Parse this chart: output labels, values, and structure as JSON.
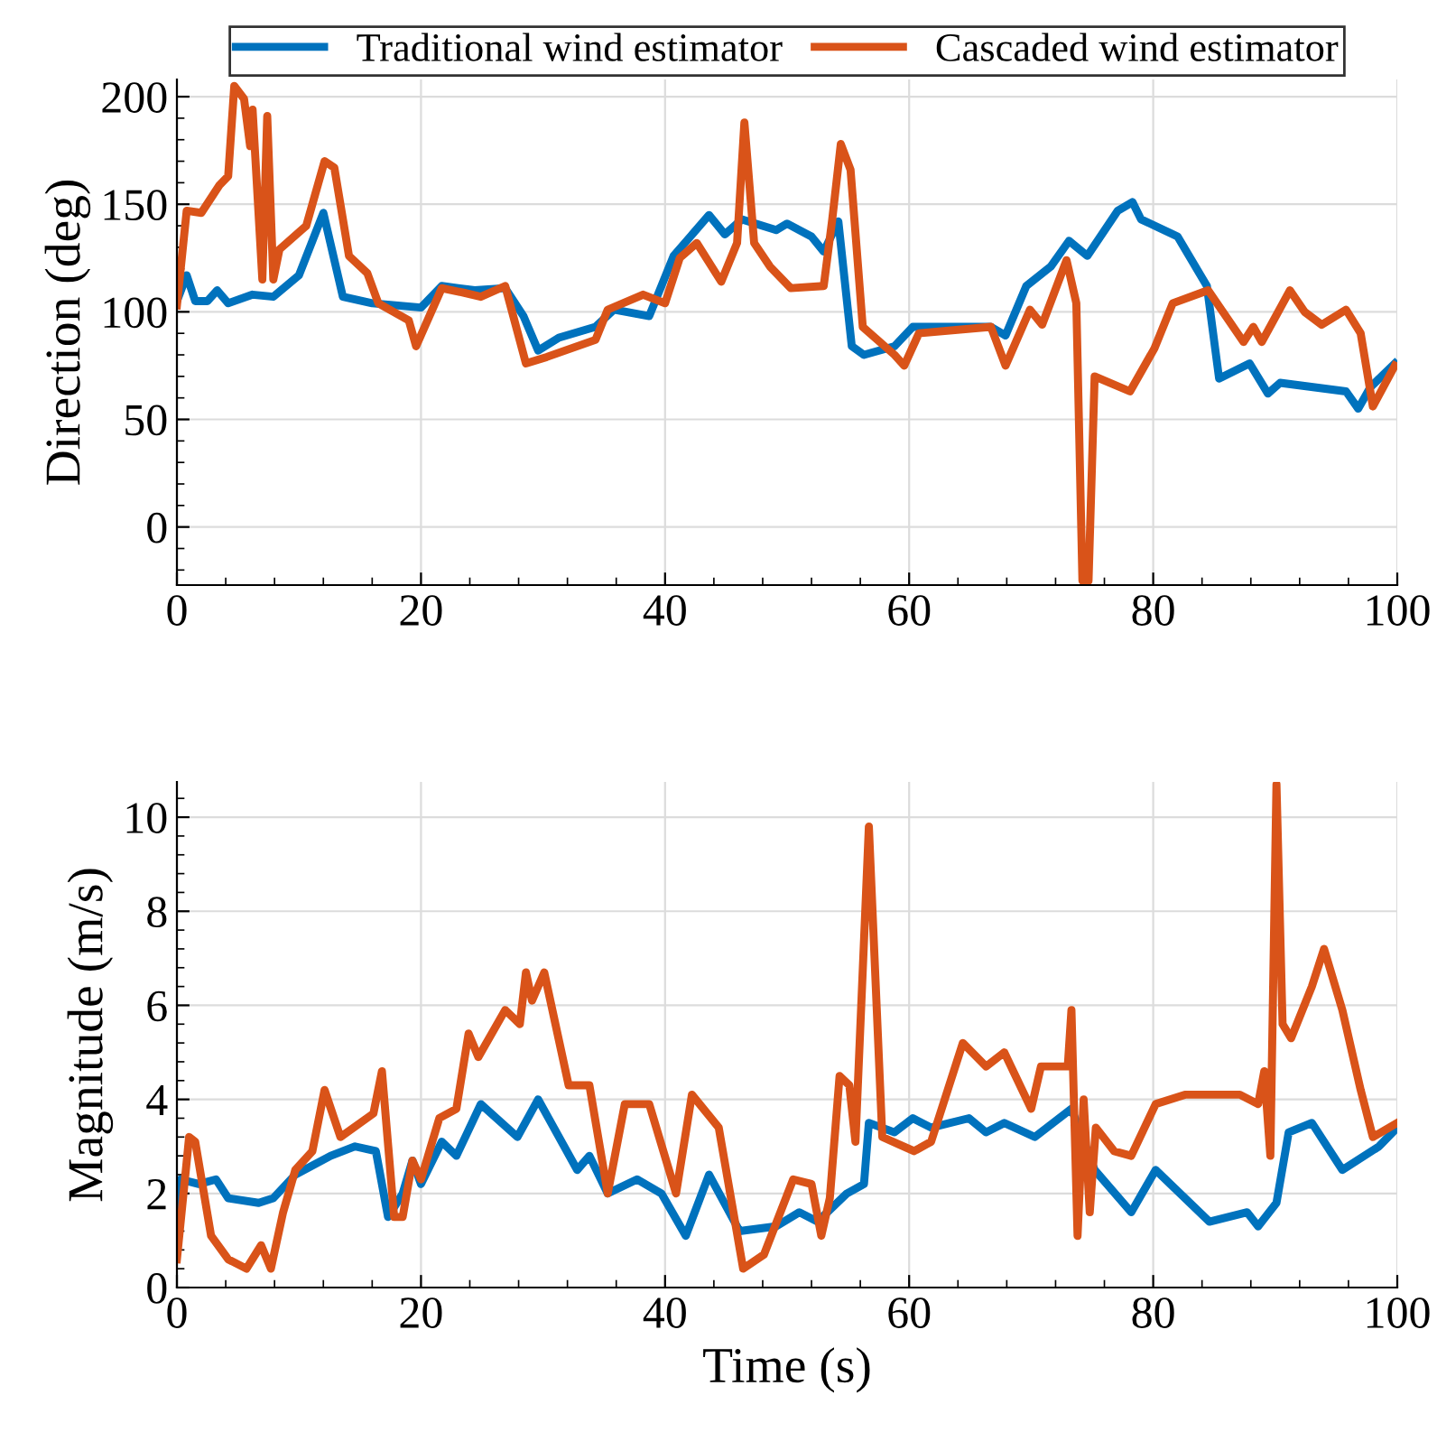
{
  "chart_data": [
    {
      "type": "line",
      "ylabel": "Direction (deg)",
      "xlim": [
        0,
        100
      ],
      "xticks": [
        0,
        20,
        40,
        60,
        80,
        100
      ],
      "ylim": [
        -27,
        208
      ],
      "yticks": [
        0,
        50,
        100,
        150,
        200
      ],
      "grid": true,
      "legend": "top",
      "line_style": "solid",
      "marker": "none",
      "series": [
        {
          "name": "Traditional wind estimator",
          "color": "#0072bd",
          "x": [
            0,
            0.8,
            1.5,
            2.5,
            3.3,
            4.2,
            6.2,
            7.9,
            10,
            12,
            13.6,
            16,
            20,
            21.7,
            24.4,
            26.9,
            28.4,
            29.6,
            31.3,
            34.3,
            35.8,
            38.7,
            40.7,
            43.6,
            44.9,
            46.3,
            49.1,
            50,
            52,
            53,
            54.2,
            55.3,
            56.3,
            58.8,
            60.3,
            66.7,
            67.9,
            69.6,
            71.6,
            73.1,
            74.6,
            77.1,
            78.3,
            79,
            82,
            84.4,
            85.4,
            87.9,
            89.4,
            90.4,
            95.8,
            96.8,
            97.8,
            99.8
          ],
          "values": [
            105,
            117,
            105,
            105,
            110,
            104,
            108,
            107,
            117,
            146,
            107,
            104,
            102,
            112,
            110,
            111,
            98,
            82,
            88,
            93,
            101,
            98,
            126,
            145,
            136,
            143,
            138,
            141,
            135,
            128,
            142,
            84,
            80,
            84,
            93,
            93,
            89,
            112,
            121,
            133,
            126,
            147,
            151,
            143,
            135,
            112,
            69,
            76,
            62,
            67,
            63,
            55,
            65,
            76
          ]
        },
        {
          "name": "Cascaded wind estimator",
          "color": "#d95319",
          "x": [
            0,
            0.8,
            2,
            3.5,
            4.2,
            4.7,
            5.5,
            6,
            6.2,
            7,
            7.4,
            7.9,
            8.4,
            10.6,
            12.1,
            12.9,
            14.1,
            15.6,
            16.5,
            19,
            19.6,
            21.7,
            23.4,
            24.9,
            26.9,
            28.6,
            30.3,
            34.3,
            35.3,
            38.2,
            40,
            41.2,
            42.6,
            44.6,
            45.9,
            46.5,
            47.3,
            48.6,
            50.3,
            53,
            53.7,
            54.4,
            55.2,
            56.2,
            58.8,
            59.6,
            60.8,
            66.7,
            67.9,
            69.9,
            70.9,
            72.9,
            73.7,
            74.2,
            74.7,
            75.2,
            78.1,
            80.1,
            81.6,
            84.5,
            87.4,
            88.2,
            88.9,
            91.2,
            92.4,
            93.8,
            95.8,
            97,
            98,
            99.8
          ],
          "values": [
            103,
            147,
            146,
            159,
            163,
            205,
            199,
            177,
            194,
            115,
            191,
            115,
            129,
            140,
            170,
            167,
            126,
            118,
            104,
            96,
            84,
            111,
            109,
            107,
            112,
            76,
            79,
            87,
            101,
            108,
            104,
            125,
            132,
            114,
            132,
            188,
            132,
            121,
            111,
            112,
            143,
            178,
            166,
            93,
            80,
            75,
            90,
            93,
            75,
            101,
            94,
            124,
            104,
            -25,
            -25,
            70,
            63,
            83,
            104,
            110,
            86,
            93,
            86,
            110,
            100,
            94,
            101,
            90,
            56,
            75
          ]
        }
      ]
    },
    {
      "type": "line",
      "xlabel": "Time (s)",
      "ylabel": "Magnitude (m/s)",
      "xlim": [
        0,
        100
      ],
      "xticks": [
        0,
        20,
        40,
        60,
        80,
        100
      ],
      "ylim": [
        0,
        10.75
      ],
      "yticks": [
        0,
        2,
        4,
        6,
        8,
        10
      ],
      "grid": true,
      "line_style": "solid",
      "marker": "none",
      "series": [
        {
          "color": "#0072bd",
          "x": [
            0,
            0.3,
            1.8,
            3.2,
            4.2,
            6.7,
            7.9,
            9.7,
            12.6,
            14.6,
            16.3,
            17.3,
            18.5,
            19.3,
            20,
            21.7,
            22.9,
            24.9,
            27.9,
            29.6,
            32.8,
            33.8,
            35.3,
            37.7,
            39.7,
            41.7,
            43.6,
            46.1,
            49.1,
            51,
            52.5,
            54.9,
            56.3,
            56.7,
            58.8,
            60.3,
            61.8,
            64.9,
            66.3,
            67.8,
            70.3,
            73.3,
            75.2,
            78.2,
            80.2,
            84.6,
            87.7,
            88.6,
            90.1,
            91.1,
            93,
            95.5,
            98.5,
            100
          ],
          "values": [
            1.6,
            2.3,
            2.2,
            2.3,
            1.9,
            1.8,
            1.9,
            2.4,
            2.8,
            3.0,
            2.9,
            1.5,
            2.0,
            2.7,
            2.2,
            3.1,
            2.8,
            3.9,
            3.2,
            4.0,
            2.5,
            2.8,
            2.0,
            2.3,
            2.0,
            1.1,
            2.4,
            1.2,
            1.3,
            1.6,
            1.4,
            2.0,
            2.2,
            3.5,
            3.3,
            3.6,
            3.4,
            3.6,
            3.3,
            3.5,
            3.2,
            3.8,
            2.5,
            1.6,
            2.5,
            1.4,
            1.6,
            1.3,
            1.8,
            3.3,
            3.5,
            2.5,
            3.0,
            3.4
          ]
        },
        {
          "color": "#d95319",
          "x": [
            0,
            1,
            1.5,
            2.8,
            4.2,
            5.7,
            6.9,
            7.7,
            8.7,
            9.7,
            11.1,
            12.1,
            13.4,
            16.1,
            16.8,
            17.8,
            18.5,
            19.3,
            20,
            21.5,
            22.9,
            23.9,
            24.7,
            26.9,
            28.1,
            28.6,
            29.1,
            30.1,
            32.1,
            33.8,
            35.3,
            36.7,
            38.7,
            40.9,
            42.2,
            44.4,
            46.4,
            48.1,
            50.5,
            52,
            52.8,
            53.5,
            54.3,
            55.1,
            55.6,
            56.7,
            57.8,
            60.4,
            61.8,
            64.4,
            66.3,
            67.8,
            70,
            70.8,
            73,
            73.3,
            73.8,
            74.3,
            74.8,
            75.3,
            76.8,
            78.2,
            80.2,
            82.6,
            87.1,
            88.6,
            89.1,
            89.6,
            90.1,
            90.6,
            91.3,
            93,
            94,
            95.5,
            97,
            98,
            100
          ],
          "values": [
            0.6,
            3.2,
            3.1,
            1.1,
            0.6,
            0.4,
            0.9,
            0.4,
            1.6,
            2.5,
            2.9,
            4.2,
            3.2,
            3.7,
            4.6,
            1.5,
            1.5,
            2.7,
            2.3,
            3.6,
            3.8,
            5.4,
            4.9,
            5.9,
            5.6,
            6.7,
            6.1,
            6.7,
            4.3,
            4.3,
            2.0,
            3.9,
            3.9,
            2.0,
            4.1,
            3.4,
            0.4,
            0.7,
            2.3,
            2.2,
            1.1,
            1.9,
            4.5,
            4.3,
            3.1,
            9.8,
            3.2,
            2.9,
            3.1,
            5.2,
            4.7,
            5.0,
            3.8,
            4.7,
            4.7,
            5.9,
            1.1,
            4.0,
            1.6,
            3.4,
            2.9,
            2.8,
            3.9,
            4.1,
            4.1,
            3.9,
            4.6,
            2.8,
            10.7,
            5.6,
            5.3,
            6.4,
            7.2,
            5.9,
            4.2,
            3.2,
            3.5
          ]
        }
      ]
    }
  ]
}
